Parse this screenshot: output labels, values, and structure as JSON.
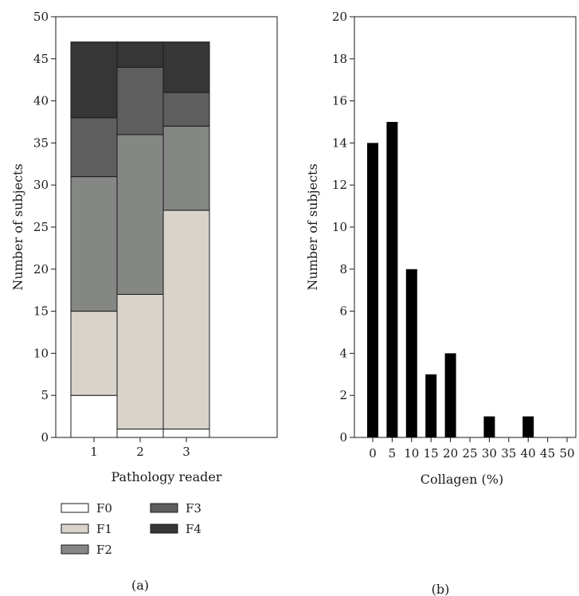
{
  "chart_data": [
    {
      "type": "bar",
      "stacked": true,
      "xlabel": "Pathology reader",
      "ylabel": "Number of subjects",
      "panel_label": "(a)",
      "categories": [
        "1",
        "2",
        "3"
      ],
      "ylim": [
        0,
        50
      ],
      "yticks": [
        "0",
        "5",
        "10",
        "15",
        "20",
        "25",
        "30",
        "35",
        "40",
        "45",
        "50"
      ],
      "grid": false,
      "legend_position": "bottom",
      "series": [
        {
          "name": "F0",
          "color": "#ffffff",
          "values": [
            5,
            1,
            1
          ]
        },
        {
          "name": "F1",
          "color": "#d8d3cb",
          "values": [
            10,
            16,
            26
          ]
        },
        {
          "name": "F2",
          "color": "#848784",
          "values": [
            16,
            19,
            10
          ]
        },
        {
          "name": "F3",
          "color": "#5e5e5e",
          "values": [
            7,
            8,
            4
          ]
        },
        {
          "name": "F4",
          "color": "#363636",
          "values": [
            9,
            3,
            6
          ]
        }
      ]
    },
    {
      "type": "bar",
      "xlabel": "Collagen (%)",
      "ylabel": "Number of subjects",
      "panel_label": "(b)",
      "categories": [
        "0",
        "5",
        "10",
        "15",
        "20",
        "25",
        "30",
        "35",
        "40",
        "45",
        "50"
      ],
      "values": [
        14,
        15,
        8,
        3,
        4,
        0,
        1,
        0,
        1,
        0,
        0
      ],
      "ylim": [
        0,
        20
      ],
      "yticks": [
        "0",
        "2",
        "4",
        "6",
        "8",
        "10",
        "12",
        "14",
        "16",
        "18",
        "20"
      ],
      "bar_color": "#000000",
      "grid": false
    }
  ]
}
